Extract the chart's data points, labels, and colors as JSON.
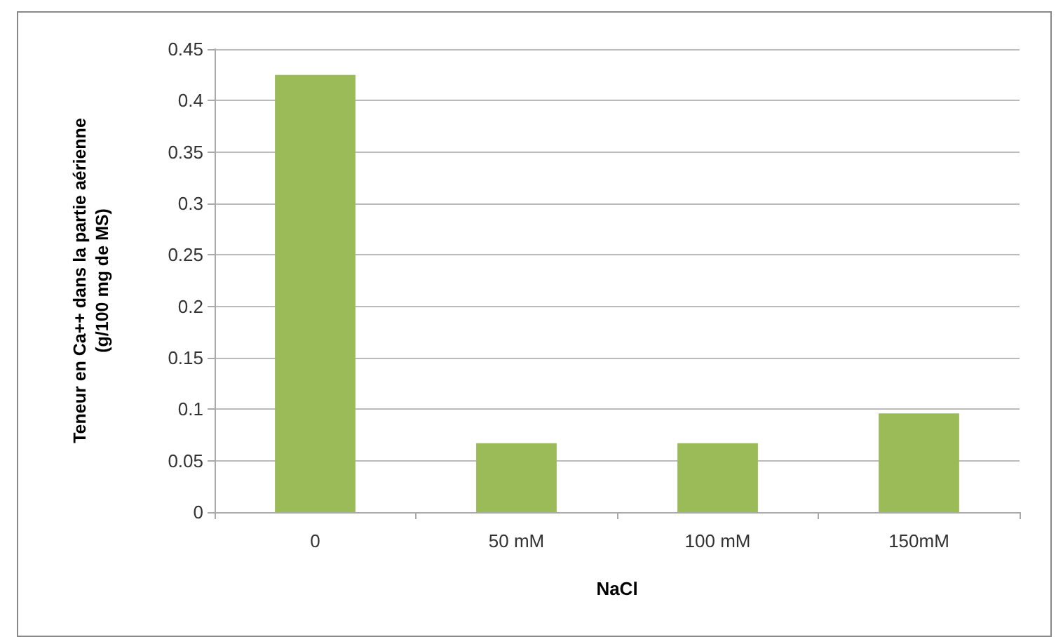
{
  "chart_data": {
    "type": "bar",
    "xlabel": "NaCl",
    "ylabel": "Teneur en Ca++ dans la partie aérienne\n(g/100 mg de MS)",
    "categories": [
      "0",
      "50 mM",
      "100 mM",
      "150mM"
    ],
    "values": [
      0.425,
      0.067,
      0.067,
      0.096
    ],
    "color": "#9bbb59",
    "ylim": [
      0,
      0.45
    ],
    "yticks": [
      0,
      0.05,
      0.1,
      0.15,
      0.2,
      0.25,
      0.3,
      0.35,
      0.4,
      0.45
    ],
    "grid": "y"
  }
}
